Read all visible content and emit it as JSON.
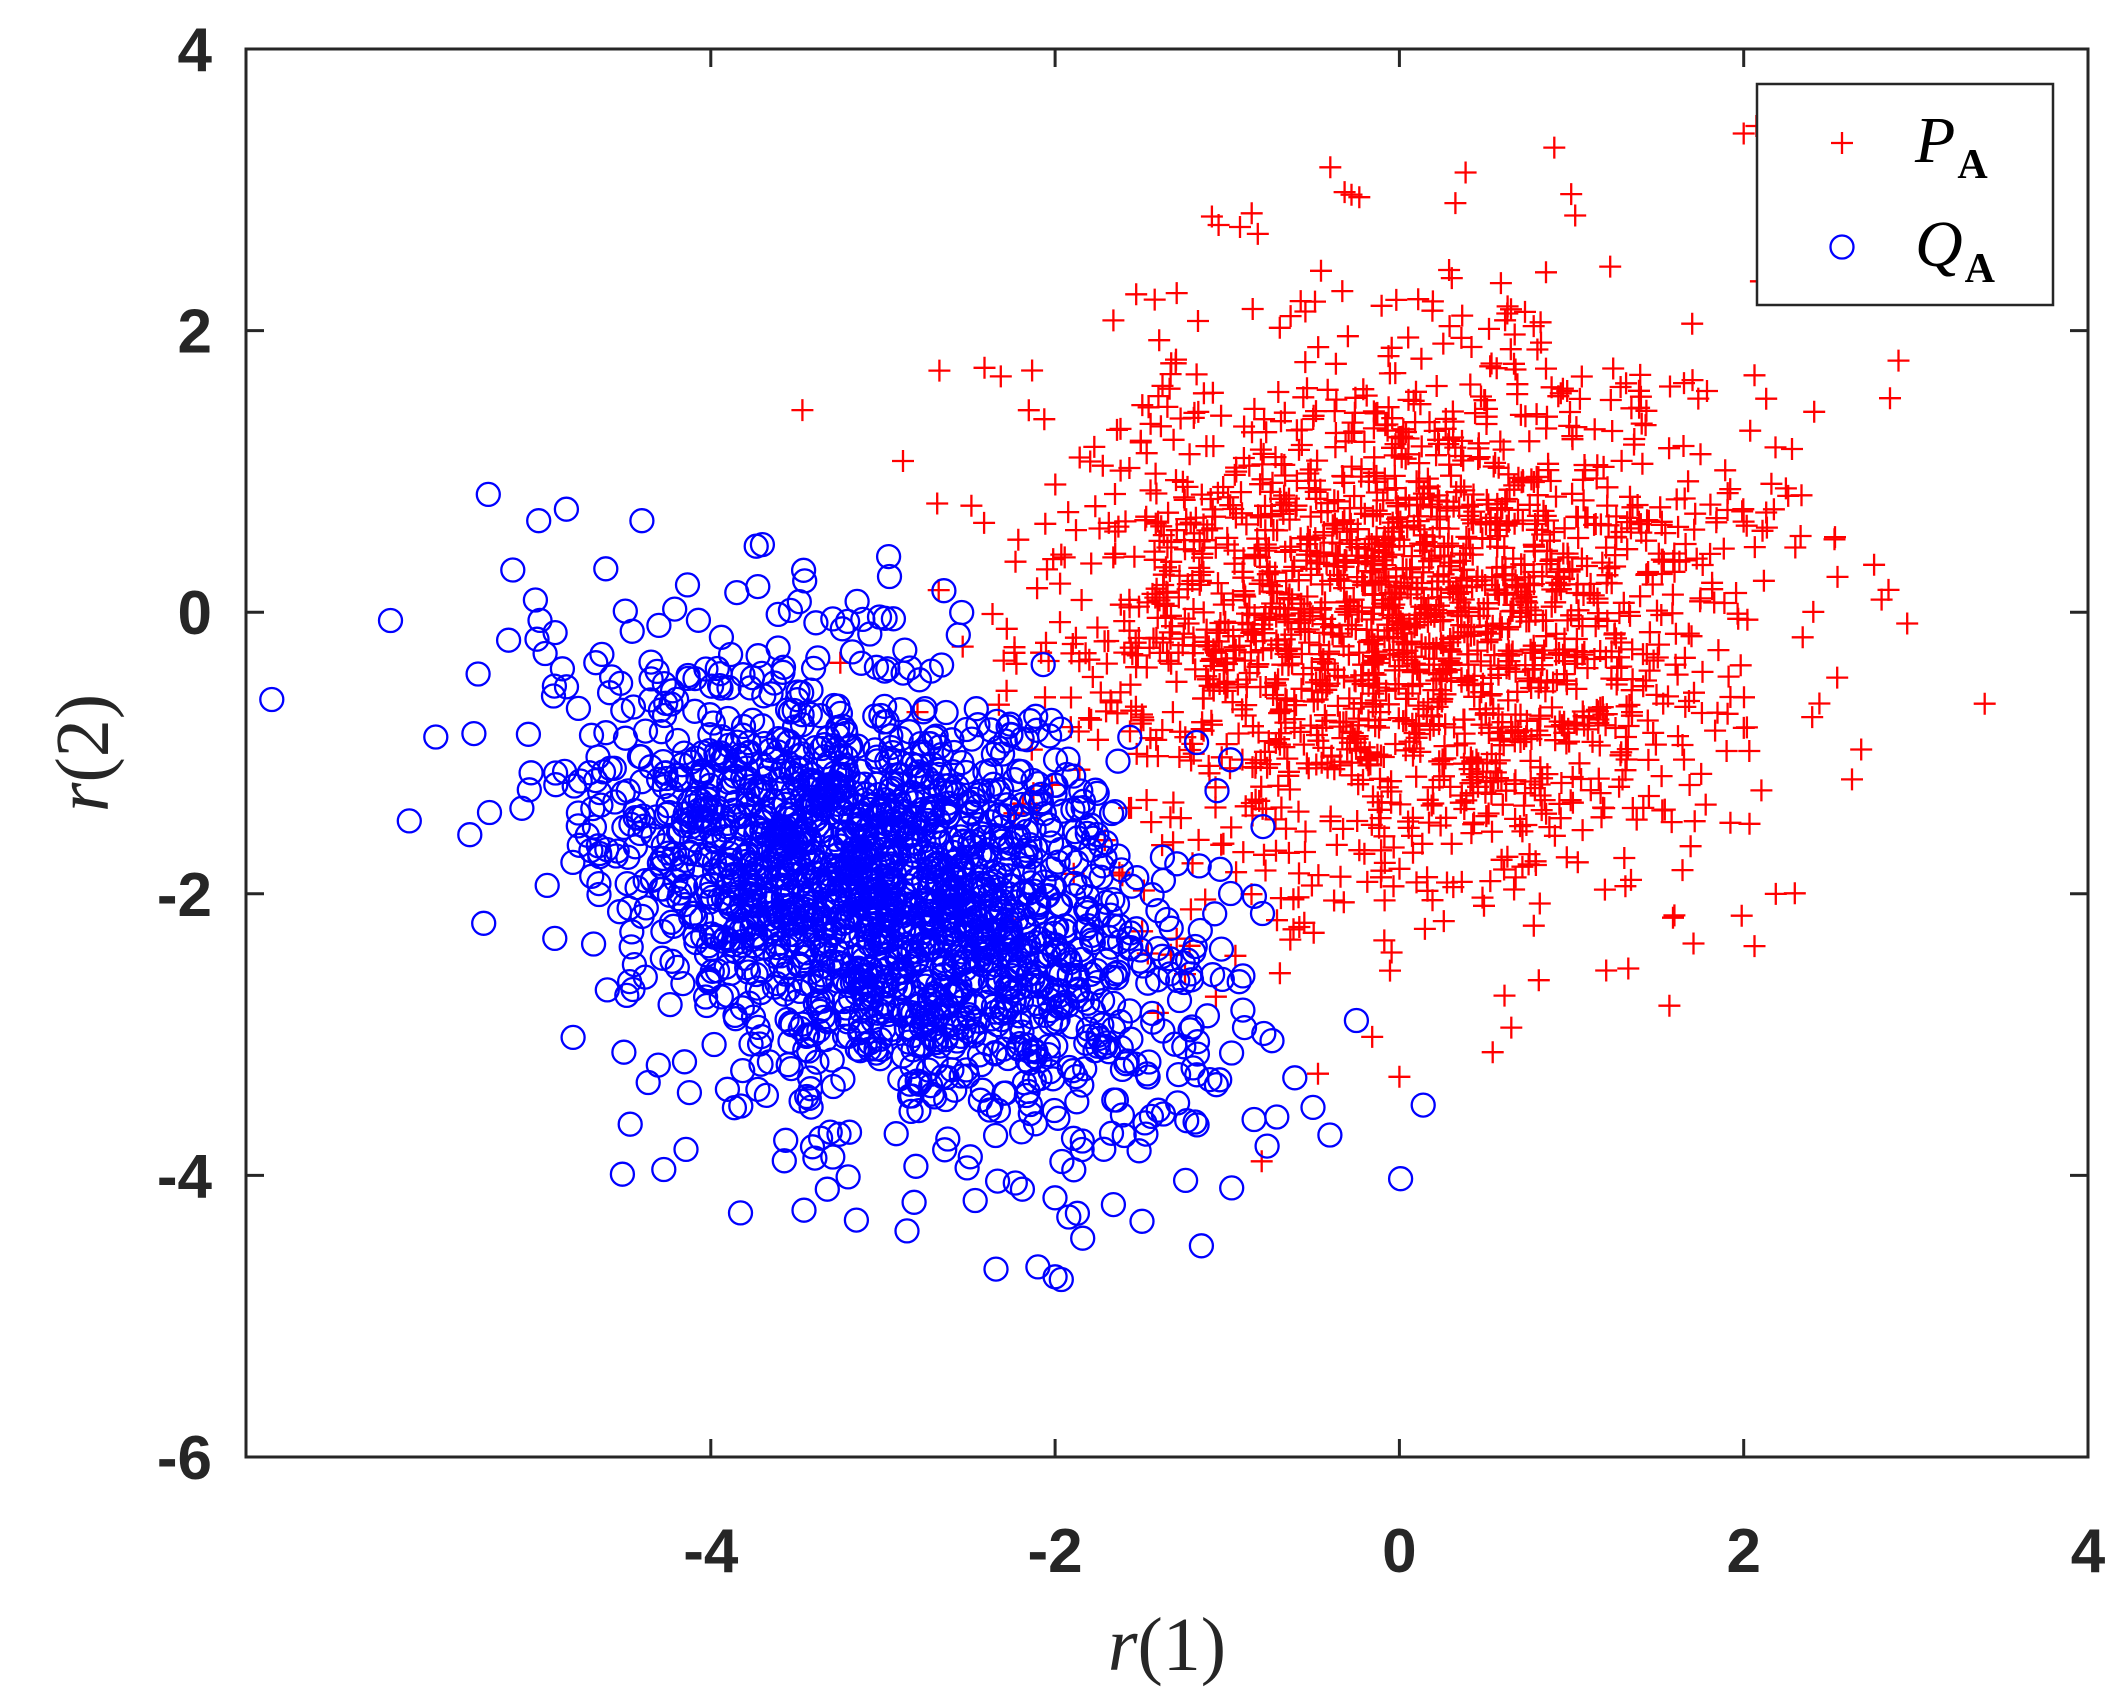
{
  "chart_data": {
    "type": "scatter",
    "xlabel": {
      "var": "r",
      "arg": "1"
    },
    "ylabel": {
      "var": "r",
      "arg": "2"
    },
    "xlim": [
      -6.7,
      4
    ],
    "ylim": [
      -6,
      4
    ],
    "xticks": [
      -4,
      -2,
      0,
      2,
      4
    ],
    "yticks": [
      -6,
      -4,
      -2,
      0,
      2,
      4
    ],
    "xtick_labels": [
      "-4",
      "-2",
      "0",
      "2",
      "4"
    ],
    "ytick_labels": [
      "-6",
      "-4",
      "-2",
      "0",
      "2",
      "4"
    ],
    "grid": false,
    "legend_position": "top-right",
    "series": [
      {
        "name": "P_A",
        "legend_main": "P",
        "legend_sub": "A",
        "marker": "plus",
        "color": "#ff0000",
        "distribution": {
          "n": 2000,
          "mean": [
            0,
            0
          ],
          "std": [
            1,
            1
          ],
          "seed": 11
        },
        "outliers": [
          [
            -0.8,
            -3.9
          ],
          [
            2.0,
            3.4
          ],
          [
            0.9,
            3.3
          ],
          [
            3.4,
            -0.65
          ],
          [
            2.95,
            -0.08
          ],
          [
            2.85,
            1.52
          ],
          [
            -1.05,
            2.75
          ],
          [
            2.1,
            2.35
          ],
          [
            0.0,
            -3.3
          ],
          [
            0.65,
            -2.95
          ]
        ]
      },
      {
        "name": "Q_A",
        "legend_main": "Q",
        "legend_sub": "A",
        "marker": "circle",
        "color": "#0000ff",
        "distribution": {
          "n": 2000,
          "mean": [
            -3,
            -2
          ],
          "std": [
            0.85,
            0.85
          ],
          "rho": -0.4,
          "seed": 29
        },
        "outliers": [
          [
            -6.55,
            -0.62
          ],
          [
            -5.4,
            -1.58
          ],
          [
            -5.0,
            0.65
          ],
          [
            -2.0,
            -4.72
          ],
          [
            -2.1,
            -4.65
          ],
          [
            -1.15,
            -4.5
          ],
          [
            -0.9,
            -2.95
          ],
          [
            -0.25,
            -2.9
          ],
          [
            -4.8,
            -3.02
          ],
          [
            -5.15,
            0.3
          ],
          [
            -4.4,
            0.65
          ],
          [
            -3.7,
            0.48
          ]
        ]
      }
    ]
  }
}
